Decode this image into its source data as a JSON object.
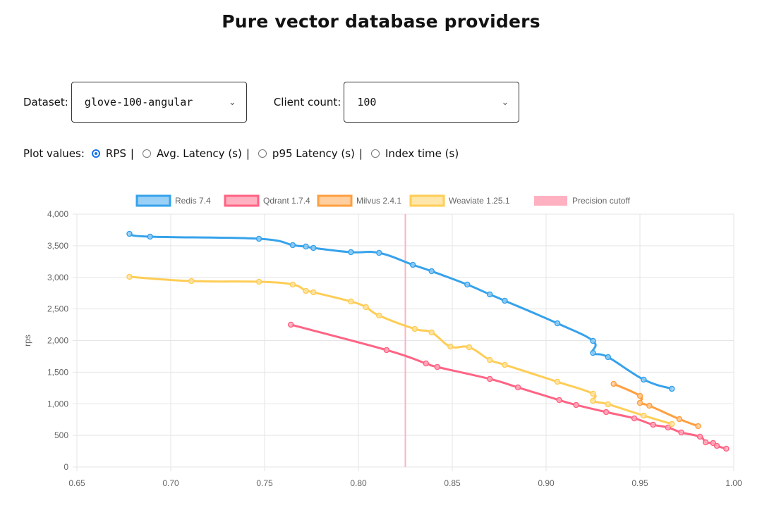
{
  "page": {
    "title": "Pure vector database providers"
  },
  "controls": {
    "dataset_label": "Dataset:",
    "dataset_value": "glove-100-angular",
    "client_label": "Client count:",
    "client_value": "100",
    "plot_label": "Plot values:",
    "plot_options": [
      {
        "label": "RPS",
        "selected": true
      },
      {
        "label": "Avg. Latency (s)",
        "selected": false
      },
      {
        "label": "p95 Latency (s)",
        "selected": false
      },
      {
        "label": "Index time (s)",
        "selected": false
      }
    ],
    "separator": "|"
  },
  "chart_data": {
    "type": "line",
    "title": "",
    "xlabel": "",
    "ylabel": "rps",
    "xlim": [
      0.65,
      1.0
    ],
    "ylim": [
      0,
      4000
    ],
    "xticks": [
      "0.65",
      "0.70",
      "0.75",
      "0.80",
      "0.85",
      "0.90",
      "0.95",
      "1.00"
    ],
    "yticks": [
      "0",
      "500",
      "1,000",
      "1,500",
      "2,000",
      "2,500",
      "3,000",
      "3,500",
      "4,000"
    ],
    "grid": true,
    "legend_position": "top",
    "precision_cutoff": {
      "name": "Precision cutoff",
      "x": 0.825,
      "color": "#ffb1c1"
    },
    "series": [
      {
        "name": "Redis 7.4",
        "color": "#36a2eb",
        "fill": "#9ad0f5",
        "points": [
          [
            0.678,
            3688
          ],
          [
            0.689,
            3643
          ],
          [
            0.747,
            3610
          ],
          [
            0.765,
            3510
          ],
          [
            0.772,
            3487
          ],
          [
            0.776,
            3465
          ],
          [
            0.796,
            3398
          ],
          [
            0.811,
            3387
          ],
          [
            0.829,
            3198
          ],
          [
            0.839,
            3097
          ],
          [
            0.858,
            2886
          ],
          [
            0.87,
            2730
          ],
          [
            0.878,
            2630
          ],
          [
            0.906,
            2273
          ],
          [
            0.925,
            1994
          ],
          [
            0.925,
            1805
          ],
          [
            0.933,
            1738
          ],
          [
            0.952,
            1382
          ],
          [
            0.967,
            1237
          ]
        ]
      },
      {
        "name": "Qdrant 1.7.4",
        "color": "#ff6384",
        "fill": "#ffb1c1",
        "points": [
          [
            0.764,
            2251
          ],
          [
            0.815,
            1850
          ],
          [
            0.836,
            1638
          ],
          [
            0.842,
            1582
          ],
          [
            0.87,
            1393
          ],
          [
            0.885,
            1259
          ],
          [
            0.907,
            1058
          ],
          [
            0.916,
            981
          ],
          [
            0.932,
            869
          ],
          [
            0.947,
            769
          ],
          [
            0.957,
            669
          ],
          [
            0.965,
            624
          ],
          [
            0.972,
            546
          ],
          [
            0.982,
            479
          ],
          [
            0.985,
            390
          ],
          [
            0.989,
            379
          ],
          [
            0.991,
            334
          ],
          [
            0.996,
            290
          ]
        ]
      },
      {
        "name": "Milvus 2.4.1",
        "color": "#ff9f40",
        "fill": "#ffcf9f",
        "points": [
          [
            0.936,
            1315
          ],
          [
            0.95,
            1125
          ],
          [
            0.95,
            1014
          ],
          [
            0.955,
            969
          ],
          [
            0.971,
            758
          ],
          [
            0.981,
            646
          ]
        ]
      },
      {
        "name": "Weaviate 1.25.1",
        "color": "#ffcd56",
        "fill": "#ffe6aa",
        "points": [
          [
            0.678,
            3008
          ],
          [
            0.711,
            2941
          ],
          [
            0.747,
            2930
          ],
          [
            0.765,
            2886
          ],
          [
            0.772,
            2786
          ],
          [
            0.776,
            2763
          ],
          [
            0.796,
            2618
          ],
          [
            0.804,
            2529
          ],
          [
            0.811,
            2396
          ],
          [
            0.83,
            2184
          ],
          [
            0.839,
            2128
          ],
          [
            0.849,
            1905
          ],
          [
            0.859,
            1894
          ],
          [
            0.87,
            1694
          ],
          [
            0.878,
            1616
          ],
          [
            0.906,
            1348
          ],
          [
            0.925,
            1159
          ],
          [
            0.925,
            1047
          ],
          [
            0.933,
            992
          ],
          [
            0.952,
            813
          ],
          [
            0.967,
            680
          ]
        ]
      }
    ]
  }
}
